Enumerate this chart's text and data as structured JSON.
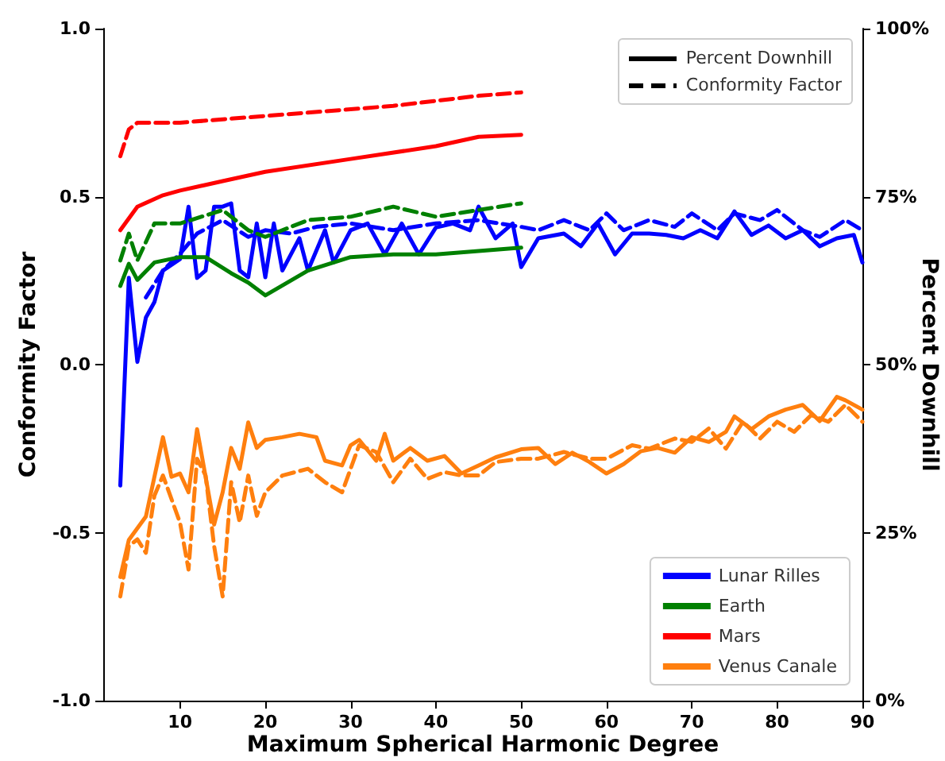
{
  "chart_data": {
    "type": "line",
    "xlabel": "Maximum Spherical Harmonic Degree",
    "ylabel": "Conformity Factor",
    "y2label": "Percent Downhill",
    "xlim": [
      1,
      90
    ],
    "xticks": [
      10,
      20,
      30,
      40,
      50,
      60,
      70,
      80,
      90
    ],
    "ylim": [
      -1,
      1
    ],
    "yticks": [
      {
        "value": -1,
        "label": "-1.0"
      },
      {
        "value": -0.5,
        "label": "-0.5"
      },
      {
        "value": 0,
        "label": "0.0"
      },
      {
        "value": 0.5,
        "label": "0.5"
      },
      {
        "value": 1,
        "label": "1.0"
      }
    ],
    "y2lim": [
      0,
      100
    ],
    "y2ticks": [
      {
        "value": 0,
        "label": "0%"
      },
      {
        "value": 25,
        "label": "25%"
      },
      {
        "value": 50,
        "label": "50%"
      },
      {
        "value": 75,
        "label": "75%"
      },
      {
        "value": 100,
        "label": "100%"
      }
    ],
    "grid": false,
    "legend": "bottom right",
    "marker": "none",
    "annotations": [
      "Percent Downhill",
      "Conformity Factor"
    ],
    "series": [
      {
        "name": "Lunar Rilles",
        "color": "#0000ff",
        "axis": "y2",
        "line_style": "solid",
        "x": [
          3,
          4,
          5,
          6,
          7,
          8,
          10,
          11,
          12,
          13,
          14,
          15,
          16,
          17,
          18,
          19,
          20,
          21,
          22,
          24,
          25,
          27,
          28,
          30,
          32,
          34,
          36,
          38,
          40,
          42,
          44,
          45,
          47,
          49,
          50,
          52,
          55,
          57,
          59,
          61,
          63,
          65,
          67,
          69,
          71,
          73,
          75,
          77,
          79,
          81,
          83,
          85,
          87,
          89,
          90
        ],
        "values": [
          32,
          62.9,
          50.4,
          57,
          59.3,
          64,
          65.7,
          73.5,
          62.9,
          64,
          73.5,
          73.5,
          74,
          64,
          63,
          71,
          63,
          71,
          64,
          68.8,
          64,
          70,
          65.2,
          70,
          71,
          66.4,
          71,
          66.4,
          70.4,
          71,
          70,
          73.5,
          68.8,
          71,
          64.5,
          68.8,
          69.5,
          67.6,
          71,
          66.4,
          69.5,
          69.5,
          69.3,
          68.8,
          70,
          68.8,
          72.8,
          69.3,
          70.7,
          68.8,
          70,
          67.6,
          68.8,
          69.3,
          65.2
        ]
      },
      {
        "color": "#0000ff",
        "axis": "y",
        "line_style": "dashed",
        "x": [
          6,
          8,
          10,
          12,
          15,
          18,
          20,
          23,
          26,
          30,
          35,
          40,
          45,
          50,
          52,
          55,
          58,
          60,
          62,
          65,
          68,
          70,
          73,
          75,
          78,
          80,
          83,
          85,
          88,
          90
        ],
        "values": [
          0.2,
          0.28,
          0.33,
          0.39,
          0.43,
          0.38,
          0.4,
          0.39,
          0.41,
          0.42,
          0.4,
          0.42,
          0.43,
          0.41,
          0.4,
          0.43,
          0.4,
          0.45,
          0.4,
          0.43,
          0.41,
          0.45,
          0.4,
          0.45,
          0.43,
          0.46,
          0.4,
          0.38,
          0.43,
          0.4
        ]
      },
      {
        "name": "Earth",
        "color": "#008000",
        "axis": "y2",
        "line_style": "solid",
        "x": [
          3,
          4,
          5,
          7,
          10,
          13,
          16,
          18,
          20,
          25,
          30,
          35,
          40,
          45,
          50
        ],
        "values": [
          61.7,
          65,
          62.6,
          65.2,
          66,
          66,
          63.6,
          62.2,
          60.3,
          64,
          66,
          66.4,
          66.4,
          66.9,
          67.4
        ]
      },
      {
        "color": "#008000",
        "axis": "y",
        "line_style": "dashed",
        "x": [
          3,
          4,
          5,
          7,
          10,
          15,
          18,
          20,
          25,
          30,
          35,
          40,
          45,
          50
        ],
        "values": [
          0.31,
          0.39,
          0.31,
          0.42,
          0.42,
          0.46,
          0.4,
          0.38,
          0.43,
          0.44,
          0.47,
          0.44,
          0.46,
          0.48
        ]
      },
      {
        "name": "Mars",
        "color": "#ff0000",
        "axis": "y2",
        "line_style": "solid",
        "x": [
          3,
          5,
          8,
          10,
          15,
          20,
          30,
          40,
          45,
          50
        ],
        "values": [
          70,
          73.5,
          75.2,
          75.9,
          77.3,
          78.7,
          80.6,
          82.5,
          83.9,
          84.2
        ]
      },
      {
        "color": "#ff0000",
        "axis": "y",
        "line_style": "dashed",
        "x": [
          3,
          4,
          5,
          10,
          20,
          30,
          35,
          45,
          50
        ],
        "values": [
          0.62,
          0.7,
          0.72,
          0.72,
          0.74,
          0.76,
          0.77,
          0.8,
          0.81
        ]
      },
      {
        "name": "Venus Canale",
        "color": "#ff7f0e",
        "axis": "y2",
        "line_style": "solid",
        "x": [
          3,
          4,
          6,
          8,
          9,
          10,
          11,
          12,
          13,
          14,
          15,
          16,
          17,
          18,
          19,
          20,
          22,
          24,
          26,
          27,
          29,
          30,
          31,
          33,
          34,
          35,
          37,
          39,
          41,
          43,
          45,
          47,
          50,
          52,
          54,
          56,
          58,
          60,
          62,
          64,
          66,
          68,
          70,
          72,
          74,
          75,
          77,
          79,
          81,
          83,
          85,
          87,
          88,
          90
        ],
        "values": [
          18.4,
          23.9,
          27.4,
          39.2,
          33.3,
          33.8,
          31,
          40.4,
          33.3,
          26.2,
          31,
          37.6,
          34.5,
          41.4,
          37.6,
          38.8,
          39.2,
          39.7,
          39.2,
          35.7,
          35,
          38,
          38.8,
          35.7,
          39.7,
          35.7,
          37.6,
          35.7,
          36.4,
          33.8,
          35,
          36.2,
          37.4,
          37.6,
          35.2,
          36.9,
          35.5,
          33.8,
          35.2,
          37.1,
          37.6,
          36.9,
          39.2,
          38.5,
          40,
          42.3,
          40.4,
          42.3,
          43.3,
          44,
          41.6,
          45.2,
          44.7,
          43.3
        ]
      },
      {
        "color": "#ff7f0e",
        "axis": "y",
        "line_style": "dashed",
        "x": [
          3,
          4,
          5,
          6,
          7,
          8,
          10,
          11,
          12,
          13,
          14,
          15,
          16,
          17,
          18,
          19,
          20,
          22,
          25,
          27,
          29,
          31,
          33,
          35,
          37,
          39,
          41,
          43,
          45,
          47,
          50,
          52,
          55,
          58,
          60,
          63,
          65,
          68,
          70,
          72,
          74,
          76,
          78,
          80,
          82,
          84,
          86,
          88,
          90
        ],
        "values": [
          -0.69,
          -0.54,
          -0.52,
          -0.56,
          -0.39,
          -0.33,
          -0.47,
          -0.61,
          -0.28,
          -0.33,
          -0.54,
          -0.69,
          -0.35,
          -0.47,
          -0.33,
          -0.45,
          -0.38,
          -0.33,
          -0.31,
          -0.35,
          -0.38,
          -0.24,
          -0.26,
          -0.35,
          -0.28,
          -0.34,
          -0.32,
          -0.33,
          -0.33,
          -0.29,
          -0.28,
          -0.28,
          -0.26,
          -0.28,
          -0.28,
          -0.24,
          -0.25,
          -0.22,
          -0.23,
          -0.19,
          -0.25,
          -0.17,
          -0.22,
          -0.17,
          -0.2,
          -0.15,
          -0.17,
          -0.12,
          -0.17
        ]
      }
    ]
  }
}
